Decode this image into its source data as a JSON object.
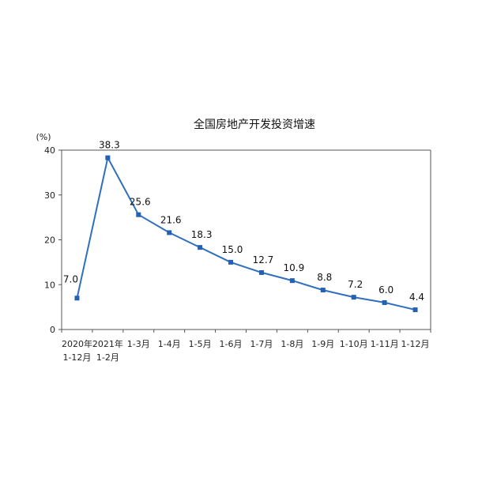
{
  "chart_data": {
    "type": "line",
    "title": "全国房地产开发投资增速",
    "ylabel": "(%)",
    "xlabel": "",
    "ylim": [
      0,
      40
    ],
    "yticks": [
      0,
      10,
      20,
      30,
      40
    ],
    "grid": false,
    "legend": "none",
    "colors": {
      "line": "#2f6fbd",
      "marker": "#2461b3",
      "axis": "#555555"
    },
    "categories": [
      [
        "2020年",
        "1-12月"
      ],
      [
        "2021年",
        "1-2月"
      ],
      [
        "1-3月"
      ],
      [
        "1-4月"
      ],
      [
        "1-5月"
      ],
      [
        "1-6月"
      ],
      [
        "1-7月"
      ],
      [
        "1-8月"
      ],
      [
        "1-9月"
      ],
      [
        "1-10月"
      ],
      [
        "1-11月"
      ],
      [
        "1-12月"
      ]
    ],
    "series": [
      {
        "values": [
          7.0,
          38.3,
          25.6,
          21.6,
          18.3,
          15.0,
          12.7,
          10.9,
          8.8,
          7.2,
          6.0,
          4.4
        ],
        "labels": [
          "7.0",
          "38.3",
          "25.6",
          "21.6",
          "18.3",
          "15.0",
          "12.7",
          "10.9",
          "8.8",
          "7.2",
          "6.0",
          "4.4"
        ]
      }
    ]
  }
}
